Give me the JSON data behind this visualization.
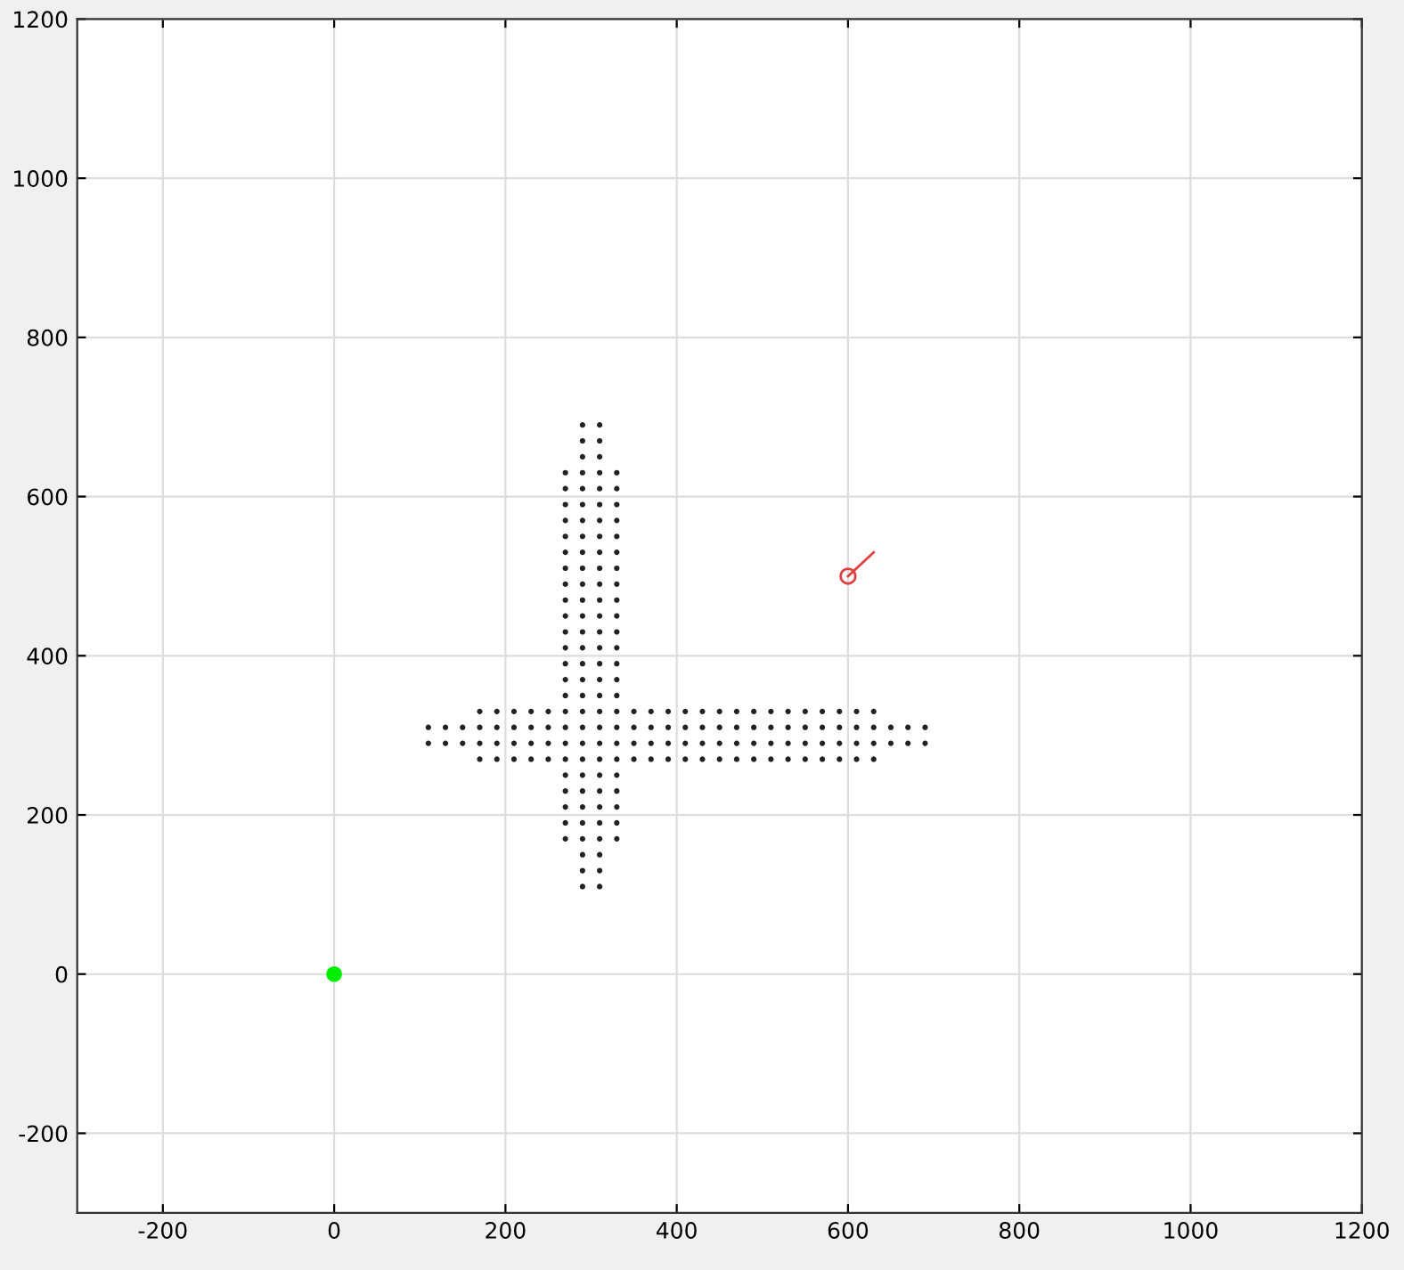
{
  "chart_data": {
    "type": "scatter",
    "xlim": [
      -300,
      1200
    ],
    "ylim": [
      -300,
      1200
    ],
    "xticks": [
      -200,
      0,
      200,
      400,
      600,
      800,
      1000,
      1200
    ],
    "yticks": [
      -200,
      0,
      200,
      400,
      600,
      800,
      1000,
      1200
    ],
    "grid": true,
    "marker": "circle",
    "series": [
      {
        "color": "#222222",
        "x": [
          290,
          310
        ],
        "values": [
          690,
          690
        ]
      },
      {
        "color": "#222222",
        "x": [
          290,
          310
        ],
        "values": [
          670,
          670
        ]
      },
      {
        "color": "#222222",
        "x": [
          290,
          310
        ],
        "values": [
          650,
          650
        ]
      },
      {
        "color": "#222222",
        "x": [
          270,
          290,
          310,
          330
        ],
        "values": [
          630,
          630,
          630,
          630
        ]
      },
      {
        "color": "#222222",
        "x": [
          270,
          290,
          310,
          330
        ],
        "values": [
          610,
          610,
          610,
          610
        ]
      },
      {
        "color": "#222222",
        "x": [
          270,
          290,
          310,
          330
        ],
        "values": [
          590,
          590,
          590,
          590
        ]
      },
      {
        "color": "#222222",
        "x": [
          270,
          290,
          310,
          330
        ],
        "values": [
          570,
          570,
          570,
          570
        ]
      },
      {
        "color": "#222222",
        "x": [
          270,
          290,
          310,
          330
        ],
        "values": [
          550,
          550,
          550,
          550
        ]
      },
      {
        "color": "#222222",
        "x": [
          270,
          290,
          310,
          330
        ],
        "values": [
          530,
          530,
          530,
          530
        ]
      },
      {
        "color": "#222222",
        "x": [
          270,
          290,
          310,
          330
        ],
        "values": [
          510,
          510,
          510,
          510
        ]
      },
      {
        "color": "#222222",
        "x": [
          270,
          290,
          310,
          330
        ],
        "values": [
          490,
          490,
          490,
          490
        ]
      },
      {
        "color": "#222222",
        "x": [
          270,
          290,
          310,
          330
        ],
        "values": [
          470,
          470,
          470,
          470
        ]
      },
      {
        "color": "#222222",
        "x": [
          270,
          290,
          310,
          330
        ],
        "values": [
          450,
          450,
          450,
          450
        ]
      },
      {
        "color": "#222222",
        "x": [
          270,
          290,
          310,
          330
        ],
        "values": [
          430,
          430,
          430,
          430
        ]
      },
      {
        "color": "#222222",
        "x": [
          270,
          290,
          310,
          330
        ],
        "values": [
          410,
          410,
          410,
          410
        ]
      },
      {
        "color": "#222222",
        "x": [
          270,
          290,
          310,
          330
        ],
        "values": [
          390,
          390,
          390,
          390
        ]
      },
      {
        "color": "#222222",
        "x": [
          270,
          290,
          310,
          330
        ],
        "values": [
          370,
          370,
          370,
          370
        ]
      },
      {
        "color": "#222222",
        "x": [
          270,
          290,
          310,
          330
        ],
        "values": [
          350,
          350,
          350,
          350
        ]
      },
      {
        "color": "#222222",
        "x": [
          170,
          190,
          210,
          230,
          250,
          270,
          290,
          310,
          330,
          350,
          370,
          390,
          410,
          430,
          450,
          470,
          490,
          510,
          530,
          550,
          570,
          590,
          610,
          630
        ],
        "values": [
          330,
          330,
          330,
          330,
          330,
          330,
          330,
          330,
          330,
          330,
          330,
          330,
          330,
          330,
          330,
          330,
          330,
          330,
          330,
          330,
          330,
          330,
          330,
          330
        ]
      },
      {
        "color": "#222222",
        "x": [
          110,
          130,
          150,
          170,
          190,
          210,
          230,
          250,
          270,
          290,
          310,
          330,
          350,
          370,
          390,
          410,
          430,
          450,
          470,
          490,
          510,
          530,
          550,
          570,
          590,
          610,
          630,
          650,
          670,
          690
        ],
        "values": [
          310,
          310,
          310,
          310,
          310,
          310,
          310,
          310,
          310,
          310,
          310,
          310,
          310,
          310,
          310,
          310,
          310,
          310,
          310,
          310,
          310,
          310,
          310,
          310,
          310,
          310,
          310,
          310,
          310,
          310
        ]
      },
      {
        "color": "#222222",
        "x": [
          110,
          130,
          150,
          170,
          190,
          210,
          230,
          250,
          270,
          290,
          310,
          330,
          350,
          370,
          390,
          410,
          430,
          450,
          470,
          490,
          510,
          530,
          550,
          570,
          590,
          610,
          630,
          650,
          670,
          690
        ],
        "values": [
          290,
          290,
          290,
          290,
          290,
          290,
          290,
          290,
          290,
          290,
          290,
          290,
          290,
          290,
          290,
          290,
          290,
          290,
          290,
          290,
          290,
          290,
          290,
          290,
          290,
          290,
          290,
          290,
          290,
          290
        ]
      },
      {
        "color": "#222222",
        "x": [
          170,
          190,
          210,
          230,
          250,
          270,
          290,
          310,
          330,
          350,
          370,
          390,
          410,
          430,
          450,
          470,
          490,
          510,
          530,
          550,
          570,
          590,
          610,
          630
        ],
        "values": [
          270,
          270,
          270,
          270,
          270,
          270,
          270,
          270,
          270,
          270,
          270,
          270,
          270,
          270,
          270,
          270,
          270,
          270,
          270,
          270,
          270,
          270,
          270,
          270
        ]
      },
      {
        "color": "#222222",
        "x": [
          270,
          290,
          310,
          330
        ],
        "values": [
          250,
          250,
          250,
          250
        ]
      },
      {
        "color": "#222222",
        "x": [
          270,
          290,
          310,
          330
        ],
        "values": [
          230,
          230,
          230,
          230
        ]
      },
      {
        "color": "#222222",
        "x": [
          270,
          290,
          310,
          330
        ],
        "values": [
          210,
          210,
          210,
          210
        ]
      },
      {
        "color": "#222222",
        "x": [
          270,
          290,
          310,
          330
        ],
        "values": [
          190,
          190,
          190,
          190
        ]
      },
      {
        "color": "#222222",
        "x": [
          270,
          290,
          310,
          330
        ],
        "values": [
          170,
          170,
          170,
          170
        ]
      },
      {
        "color": "#222222",
        "x": [
          290,
          310
        ],
        "values": [
          150,
          150
        ]
      },
      {
        "color": "#222222",
        "x": [
          290,
          310
        ],
        "values": [
          130,
          130
        ]
      },
      {
        "color": "#222222",
        "x": [
          290,
          310
        ],
        "values": [
          110,
          110
        ]
      },
      {
        "color": "#00ee00",
        "x": [
          0
        ],
        "values": [
          0
        ]
      },
      {
        "type": "line",
        "color": "#e04040",
        "x": [
          600,
          630
        ],
        "values": [
          500,
          530
        ]
      }
    ]
  }
}
